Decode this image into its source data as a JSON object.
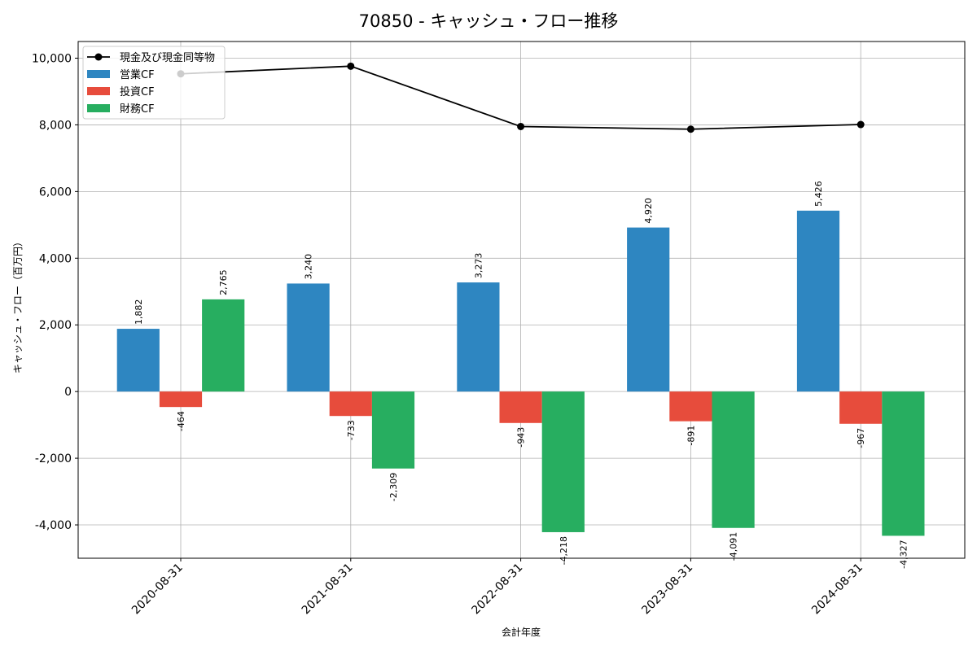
{
  "chart_data": {
    "type": "bar",
    "title": "70850 - キャッシュ・フロー推移",
    "xlabel": "会計年度",
    "ylabel": "キャッシュ・フロー（百万円）",
    "categories": [
      "2020-08-31",
      "2021-08-31",
      "2022-08-31",
      "2023-08-31",
      "2024-08-31"
    ],
    "ylim": [
      -5000,
      10500
    ],
    "yticks": [
      -4000,
      -2000,
      0,
      2000,
      4000,
      6000,
      8000,
      10000
    ],
    "ytick_labels": [
      "-4,000",
      "-2,000",
      "0",
      "2,000",
      "4,000",
      "6,000",
      "8,000",
      "10,000"
    ],
    "grid": true,
    "legend_position": "top-left",
    "series": [
      {
        "name": "営業CF",
        "kind": "bar",
        "color": "#2e86c1",
        "values": [
          1882,
          3240,
          3273,
          4920,
          5426
        ],
        "labels": [
          "1,882",
          "3,240",
          "3,273",
          "4,920",
          "5,426"
        ]
      },
      {
        "name": "投資CF",
        "kind": "bar",
        "color": "#e74c3c",
        "values": [
          -464,
          -733,
          -943,
          -891,
          -967
        ],
        "labels": [
          "-464",
          "-733",
          "-943",
          "-891",
          "-967"
        ]
      },
      {
        "name": "財務CF",
        "kind": "bar",
        "color": "#27ae60",
        "values": [
          2765,
          -2309,
          -4218,
          -4091,
          -4327
        ],
        "labels": [
          "2,765",
          "-2,309",
          "-4,218",
          "-4,091",
          "-4,327"
        ]
      },
      {
        "name": "現金及び現金同等物",
        "kind": "line",
        "color": "#000000",
        "values": [
          9530,
          9760,
          7950,
          7870,
          8010
        ]
      }
    ]
  }
}
